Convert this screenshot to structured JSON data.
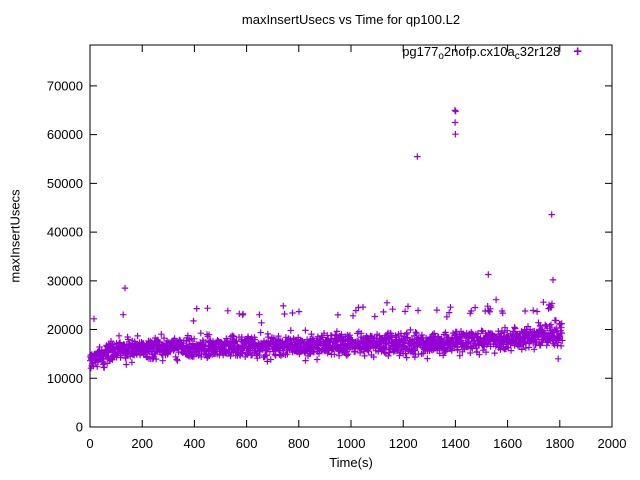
{
  "window": {
    "background": "#ffffff"
  },
  "colors": {
    "marker": "#9400d3",
    "axis": "#000000",
    "text": "#000000"
  },
  "header": {
    "title": "maxInsertUsecs vs Time for qp100.L2"
  },
  "axes": {
    "x_label": "Time(s)",
    "y_label": "maxInsertUsecs"
  },
  "legend": {
    "part1": "pg177",
    "sub1": "o",
    "part2": "2nofp.cx10a",
    "sub2": "c",
    "part3": "32r128",
    "marker_glyph": "+"
  },
  "chart_data": {
    "type": "scatter",
    "title": "maxInsertUsecs vs Time for qp100.L2",
    "xlabel": "Time(s)",
    "ylabel": "maxInsertUsecs",
    "xlim": [
      0,
      2000
    ],
    "ylim": [
      0,
      78400
    ],
    "xticks": [
      0,
      200,
      400,
      600,
      800,
      1000,
      1200,
      1400,
      1600,
      1800,
      2000
    ],
    "yticks": [
      0,
      10000,
      20000,
      30000,
      40000,
      50000,
      60000,
      70000
    ],
    "grid": false,
    "legend_position": "top-right-inside",
    "series": [
      {
        "name": "pg177_o2nofp.cx10a_c32r128",
        "marker": "plus",
        "color": "#9400d3",
        "outlier_points": [
          [
            134,
            28500
          ],
          [
            409,
            24300
          ],
          [
            585,
            23000
          ],
          [
            776,
            23400
          ],
          [
            950,
            23000
          ],
          [
            1046,
            24600
          ],
          [
            1138,
            25500
          ],
          [
            1257,
            23900
          ],
          [
            1329,
            24000
          ],
          [
            1254,
            55500
          ],
          [
            1398,
            65000
          ],
          [
            1401,
            64800
          ],
          [
            1399,
            62500
          ],
          [
            1400,
            60100
          ],
          [
            1461,
            23800
          ],
          [
            1514,
            23800
          ],
          [
            1526,
            31300
          ],
          [
            1527,
            23900
          ],
          [
            1579,
            23800
          ],
          [
            1667,
            23800
          ],
          [
            1698,
            23900
          ],
          [
            1713,
            23700
          ],
          [
            1757,
            24300
          ],
          [
            1763,
            24500
          ],
          [
            1766,
            24900
          ],
          [
            1770,
            25300
          ],
          [
            1769,
            43600
          ],
          [
            1774,
            30200
          ],
          [
            1794,
            14000
          ]
        ],
        "band": {
          "description": "dense noisy sample band, ~1 point per second, values mostly 13000-21000 rising slowly left to right",
          "count": 1800,
          "t_range": [
            0,
            1810
          ],
          "seed": 20240613,
          "mean_keypoints": [
            [
              0,
              13600
            ],
            [
              40,
              14700
            ],
            [
              100,
              15600
            ],
            [
              200,
              16200
            ],
            [
              500,
              16400
            ],
            [
              900,
              16800
            ],
            [
              1300,
              17200
            ],
            [
              1600,
              17900
            ],
            [
              1750,
              18900
            ],
            [
              1810,
              19100
            ]
          ],
          "min_keypoints": [
            [
              0,
              10900
            ],
            [
              120,
              12300
            ],
            [
              300,
              12900
            ],
            [
              1810,
              13400
            ]
          ],
          "spread": 3800,
          "spike_probability": 0.018,
          "spike_range": [
            4800,
            8600
          ]
        }
      }
    ]
  }
}
